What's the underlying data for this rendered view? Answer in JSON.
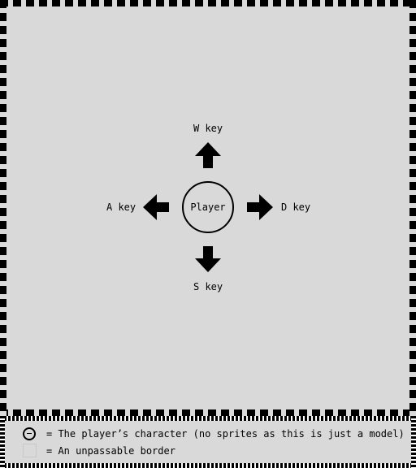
{
  "controls": {
    "up": "W key",
    "left": "A key",
    "right": "D key",
    "down": "S key"
  },
  "player": {
    "label": "Player"
  },
  "legend": {
    "player_text": "= The player’s character (no sprites as this is just a model)",
    "border_text": "= An unpassable border"
  },
  "colors": {
    "floor": "#d9d9d9",
    "border": "#000000"
  },
  "icons": [
    "arrow-up-icon",
    "arrow-left-icon",
    "arrow-right-icon",
    "arrow-down-icon",
    "player-circle-icon",
    "border-tile-icon"
  ]
}
